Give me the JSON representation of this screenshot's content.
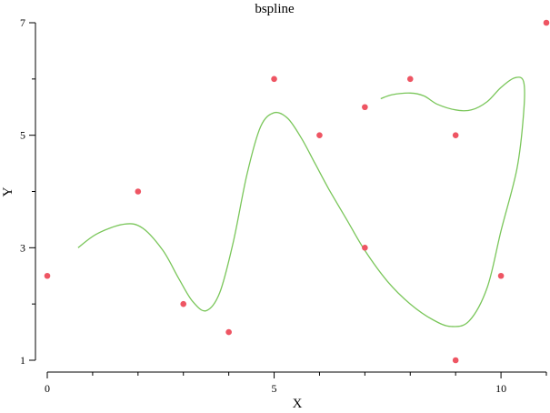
{
  "chart_data": {
    "type": "scatter",
    "title": "bspline",
    "xlabel": "X",
    "ylabel": "Y",
    "xlim": [
      0,
      11
    ],
    "ylim": [
      1,
      7
    ],
    "x_major_ticks": [
      0,
      5,
      10
    ],
    "x_minor_ticks": [
      1,
      2,
      3,
      4,
      6,
      7,
      8,
      9,
      11
    ],
    "y_major_ticks": [
      1,
      3,
      5,
      7
    ],
    "y_minor_ticks": [
      2,
      4,
      6
    ],
    "grid": false,
    "colors": {
      "points": "#ee5563",
      "curve": "#7ac65a"
    },
    "series": [
      {
        "kind": "points",
        "x": [
          0,
          2,
          3,
          4,
          5,
          6,
          7,
          7,
          8,
          9,
          9,
          10,
          11
        ],
        "y": [
          2.5,
          4,
          2,
          1.5,
          6,
          5,
          5.5,
          3,
          6,
          5,
          1,
          2.5,
          7
        ]
      },
      {
        "kind": "line",
        "x": [
          0.68,
          1.1,
          1.7,
          2.1,
          2.55,
          2.9,
          3.2,
          3.5,
          3.8,
          4.1,
          4.4,
          4.7,
          5.0,
          5.3,
          5.6,
          5.9,
          6.2,
          6.6,
          7.0,
          7.5,
          8.0,
          8.5,
          8.9,
          9.3,
          9.7,
          10.0,
          10.35,
          10.5,
          10.5,
          10.3,
          10.0,
          9.7,
          9.35,
          9.0,
          8.6,
          8.3,
          8.0,
          7.6,
          7.35
        ],
        "y": [
          3.0,
          3.25,
          3.42,
          3.35,
          2.95,
          2.45,
          2.05,
          1.88,
          2.2,
          3.1,
          4.3,
          5.15,
          5.4,
          5.3,
          4.95,
          4.5,
          4.05,
          3.5,
          2.95,
          2.4,
          2.0,
          1.72,
          1.6,
          1.7,
          2.3,
          3.3,
          4.4,
          5.4,
          5.95,
          6.02,
          5.85,
          5.6,
          5.45,
          5.45,
          5.55,
          5.7,
          5.75,
          5.72,
          5.65
        ]
      }
    ]
  }
}
